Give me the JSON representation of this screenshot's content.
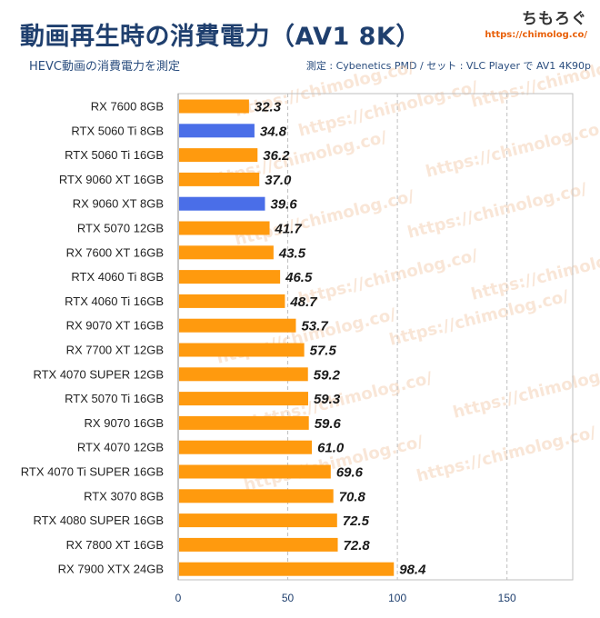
{
  "header": {
    "title": "動画再生時の消費電力（AV1 8K）",
    "subtitle": "HEVC動画の消費電力を測定",
    "source": "測定 : Cybenetics PMD / セット : VLC Player で AV1 4K90p",
    "brand_name": "ちもろぐ",
    "brand_url": "https://chimolog.co/"
  },
  "watermark": "https://chimolog.co/",
  "colors": {
    "default_bar": "#ff9a0e",
    "highlight_bar": "#4a6ee8",
    "grid": "#bfbfbf"
  },
  "chart_data": {
    "type": "bar",
    "orientation": "horizontal",
    "title": "動画再生時の消費電力（AV1 8K）",
    "subtitle": "HEVC動画の消費電力を測定",
    "categories": [
      "RX 7600 8GB",
      "RTX 5060 Ti 8GB",
      "RTX 5060 Ti 16GB",
      "RTX 9060 XT 16GB",
      "RX 9060 XT 8GB",
      "RTX 5070 12GB",
      "RX 7600 XT 16GB",
      "RTX 4060 Ti 8GB",
      "RTX 4060 Ti 16GB",
      "RX 9070 XT 16GB",
      "RX 7700 XT 12GB",
      "RTX 4070 SUPER 12GB",
      "RTX 5070 Ti 16GB",
      "RX 9070 16GB",
      "RTX 4070 12GB",
      "RTX 4070 Ti SUPER 16GB",
      "RTX 3070 8GB",
      "RTX 4080 SUPER 16GB",
      "RX 7800 XT 16GB",
      "RX 7900 XTX 24GB"
    ],
    "values": [
      32.3,
      34.8,
      36.2,
      37.0,
      39.6,
      41.7,
      43.5,
      46.5,
      48.7,
      53.7,
      57.5,
      59.2,
      59.3,
      59.6,
      61.0,
      69.6,
      70.8,
      72.5,
      72.8,
      98.4
    ],
    "value_labels": [
      "32.3",
      "34.8",
      "36.2",
      "37.0",
      "39.6",
      "41.7",
      "43.5",
      "46.5",
      "48.7",
      "53.7",
      "57.5",
      "59.2",
      "59.3",
      "59.6",
      "61.0",
      "69.6",
      "70.8",
      "72.5",
      "72.8",
      "98.4"
    ],
    "highlighted": [
      "RTX 5060 Ti 8GB",
      "RX 9060 XT 8GB"
    ],
    "xlim": [
      0,
      180
    ],
    "xticks": [
      0,
      50,
      100,
      150
    ],
    "xtick_labels": [
      "0",
      "50",
      "100",
      "150"
    ],
    "grid": true
  }
}
